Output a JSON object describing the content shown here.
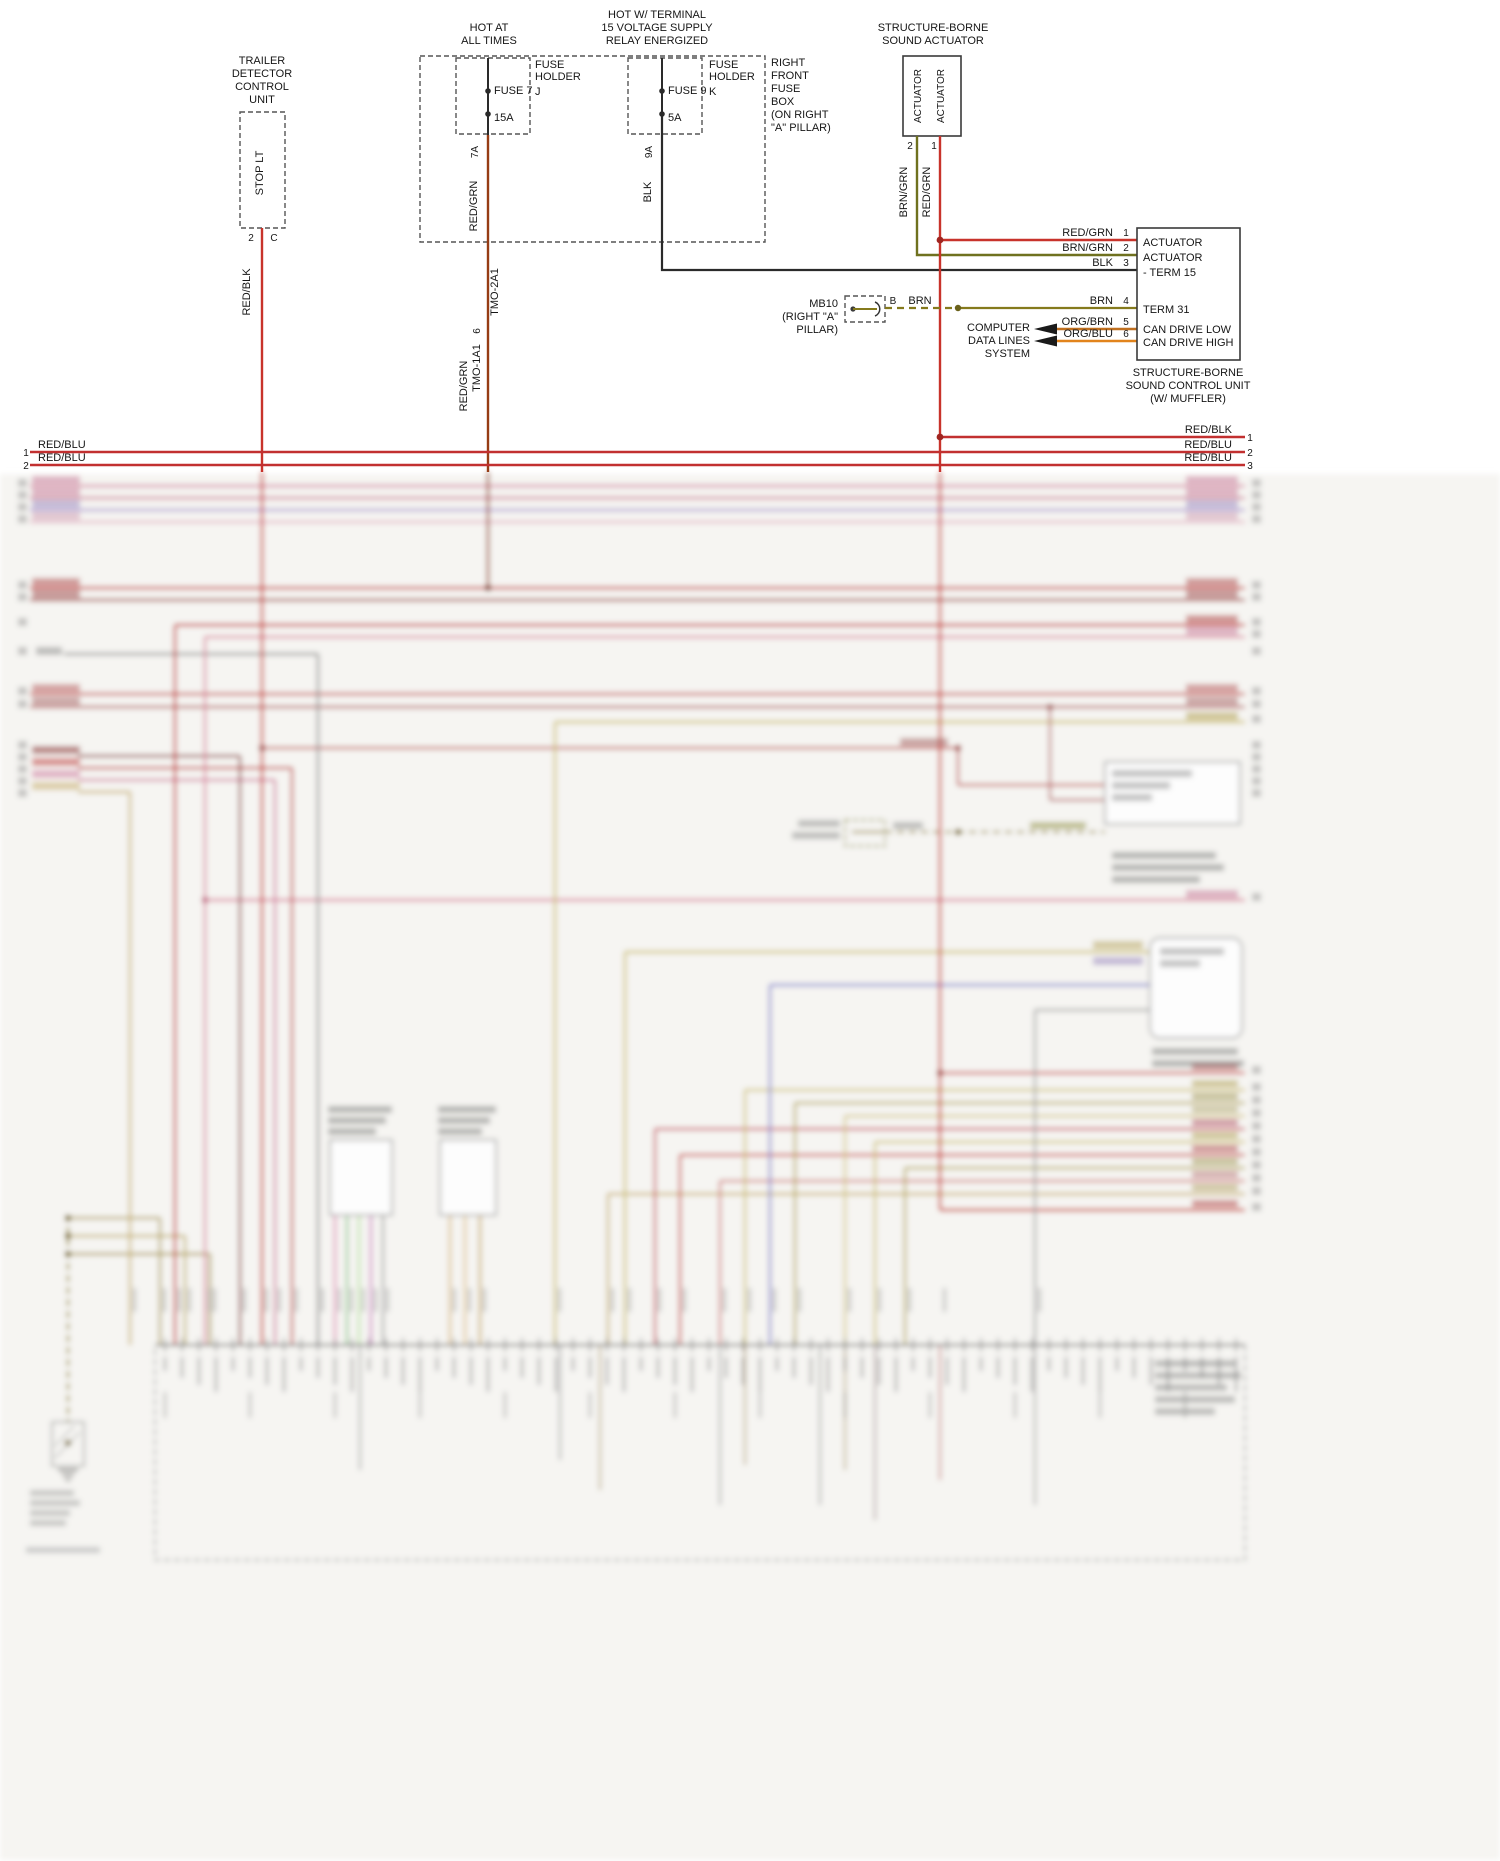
{
  "trailer_unit": {
    "title": [
      "TRAILER",
      "DETECTOR",
      "CONTROL",
      "UNIT"
    ],
    "component": "STOP LT",
    "pin_num": "2",
    "pin_letter": "C",
    "wire": "RED/BLK"
  },
  "fuse7": {
    "hot_label": [
      "HOT AT",
      "ALL TIMES"
    ],
    "name": "FUSE 7",
    "amps": "15A",
    "holder": [
      "FUSE",
      "HOLDER"
    ],
    "holder_letter": "J",
    "pin": "7A",
    "wire": "RED/GRN",
    "tmo_upper": "TMO-2A1",
    "pin6": "6",
    "tmo_lower": "TMO-1A1",
    "wire_lower": "RED/GRN"
  },
  "fuse9": {
    "hot_label": [
      "HOT W/ TERMINAL",
      "15 VOLTAGE SUPPLY",
      "RELAY ENERGIZED"
    ],
    "name": "FUSE 9",
    "amps": "5A",
    "holder": [
      "FUSE",
      "HOLDER"
    ],
    "holder_letter": "K",
    "pin": "9A",
    "wire": "BLK"
  },
  "fuse_box": {
    "label": [
      "RIGHT",
      "FRONT",
      "FUSE",
      "BOX",
      "(ON RIGHT",
      "\"A\" PILLAR)"
    ]
  },
  "actuator": {
    "title": [
      "STRUCTURE-BORNE",
      "SOUND ACTUATOR"
    ],
    "left_text": "ACTUATOR",
    "right_text": "ACTUATOR",
    "left_pin": "2",
    "right_pin": "1",
    "left_wire": "BRN/GRN",
    "right_wire": "RED/GRN"
  },
  "control_unit": {
    "pins": [
      {
        "wire": "RED/GRN",
        "num": "1",
        "label": "ACTUATOR"
      },
      {
        "wire": "BRN/GRN",
        "num": "2",
        "label": "ACTUATOR"
      },
      {
        "wire": "BLK",
        "num": "3",
        "label": "- TERM 15"
      },
      {
        "wire": "BRN",
        "num": "4",
        "label": "TERM 31"
      },
      {
        "wire": "ORG/BRN",
        "num": "5",
        "label": "CAN DRIVE LOW"
      },
      {
        "wire": "ORG/BLU",
        "num": "6",
        "label": "CAN DRIVE HIGH"
      }
    ],
    "title": [
      "STRUCTURE-BORNE",
      "SOUND CONTROL UNIT",
      "(W/ MUFFLER)"
    ]
  },
  "mb10": {
    "label": [
      "MB10",
      "(RIGHT \"A\"",
      "PILLAR)"
    ],
    "terminal": "B",
    "wire": "BRN"
  },
  "computer": {
    "label": [
      "COMPUTER",
      "DATA LINES",
      "SYSTEM"
    ]
  },
  "bus": {
    "left": [
      {
        "num": "1",
        "wire": "RED/BLU"
      },
      {
        "num": "2",
        "wire": "RED/BLU"
      }
    ],
    "right": [
      {
        "wire": "RED/BLK",
        "num": "1"
      },
      {
        "wire": "RED/BLU",
        "num": "2"
      },
      {
        "wire": "RED/BLU",
        "num": "3"
      }
    ]
  }
}
